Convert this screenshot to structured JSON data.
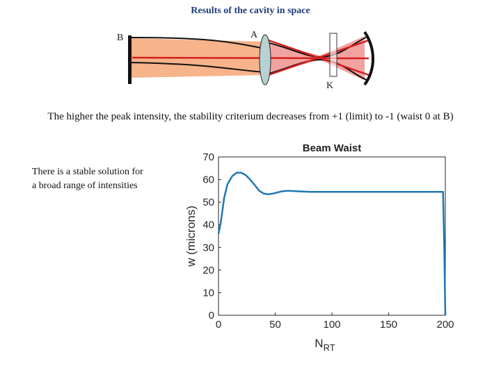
{
  "slide": {
    "title": "Results of  the cavity in space",
    "caption": "The higher  the peak intensity, the stability criterium decreases from +1 (limit) to -1 (waist 0 at B)",
    "note_line1": "There is a stable solution for",
    "note_line2": "a broad range of intensities"
  },
  "diagram": {
    "label_b": "B",
    "label_a": "A",
    "label_k": "K",
    "colors": {
      "beam_fill": "#f7b38a",
      "focus_fill": "#f2a3a0",
      "red_ray": "#d42020",
      "lens_fill": "#b7d1d4",
      "mirror": "#111111"
    }
  },
  "chart_data": {
    "type": "line",
    "title": "Beam Waist",
    "xlabel": "N",
    "xlabel_sub": "RT",
    "ylabel": "w (microns)",
    "xlim": [
      0,
      200
    ],
    "ylim": [
      0,
      70
    ],
    "xticks": [
      0,
      50,
      100,
      150,
      200
    ],
    "yticks": [
      0,
      10,
      20,
      30,
      40,
      50,
      60,
      70
    ],
    "series": [
      {
        "color": "#1f77b4",
        "x": [
          0,
          2,
          5,
          8,
          12,
          16,
          20,
          24,
          28,
          32,
          36,
          40,
          44,
          48,
          52,
          56,
          60,
          64,
          70,
          80,
          100,
          150,
          198,
          199,
          200
        ],
        "y": [
          36,
          41,
          52,
          58,
          61.5,
          63,
          63,
          62,
          60,
          57.5,
          55,
          53.8,
          53.5,
          53.8,
          54.3,
          54.8,
          55,
          55,
          54.8,
          54.6,
          54.6,
          54.6,
          54.6,
          30,
          0
        ]
      }
    ]
  }
}
